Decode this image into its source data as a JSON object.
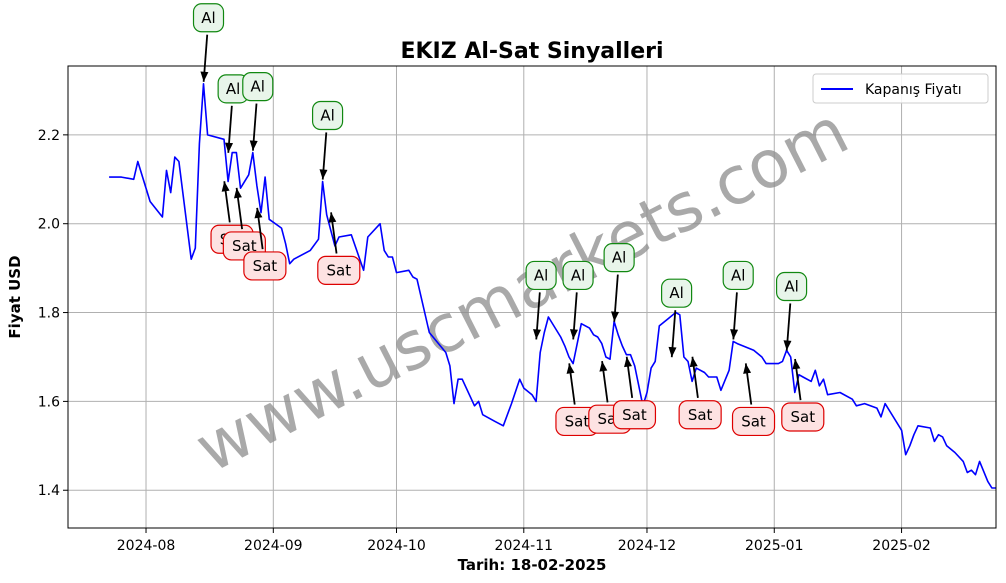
{
  "chart_data": {
    "type": "line",
    "title": "EKIZ Al-Sat Sinyalleri",
    "xlabel": "Tarih: 18-02-2025",
    "ylabel": "Fiyat USD",
    "xlim": [
      "2024-07-13",
      "2025-02-24"
    ],
    "ylim": [
      1.315,
      2.355
    ],
    "grid": true,
    "legend": "top-right",
    "watermark": "www.uscmarkets.com",
    "x_ticks": [
      "2024-08",
      "2024-09",
      "2024-10",
      "2024-11",
      "2024-12",
      "2025-01",
      "2025-02"
    ],
    "y_ticks": [
      1.4,
      1.6,
      1.8,
      2.0,
      2.2
    ],
    "series": [
      {
        "name": "Kapanış Fiyatı",
        "color": "#0000ff",
        "points": [
          [
            "2024-07-23",
            2.105
          ],
          [
            "2024-07-26",
            2.105
          ],
          [
            "2024-07-29",
            2.1
          ],
          [
            "2024-07-30",
            2.14
          ],
          [
            "2024-08-02",
            2.05
          ],
          [
            "2024-08-05",
            2.015
          ],
          [
            "2024-08-06",
            2.12
          ],
          [
            "2024-08-07",
            2.07
          ],
          [
            "2024-08-08",
            2.15
          ],
          [
            "2024-08-09",
            2.14
          ],
          [
            "2024-08-12",
            1.92
          ],
          [
            "2024-08-13",
            1.945
          ],
          [
            "2024-08-14",
            2.18
          ],
          [
            "2024-08-15",
            2.315
          ],
          [
            "2024-08-16",
            2.2
          ],
          [
            "2024-08-20",
            2.19
          ],
          [
            "2024-08-21",
            2.095
          ],
          [
            "2024-08-22",
            2.16
          ],
          [
            "2024-08-23",
            2.16
          ],
          [
            "2024-08-24",
            2.08
          ],
          [
            "2024-08-26",
            2.11
          ],
          [
            "2024-08-27",
            2.16
          ],
          [
            "2024-08-28",
            2.085
          ],
          [
            "2024-08-29",
            2.025
          ],
          [
            "2024-08-30",
            2.105
          ],
          [
            "2024-08-31",
            2.01
          ],
          [
            "2024-09-03",
            1.99
          ],
          [
            "2024-09-04",
            1.955
          ],
          [
            "2024-09-05",
            1.91
          ],
          [
            "2024-09-06",
            1.92
          ],
          [
            "2024-09-10",
            1.94
          ],
          [
            "2024-09-12",
            1.965
          ],
          [
            "2024-09-13",
            2.095
          ],
          [
            "2024-09-14",
            2.02
          ],
          [
            "2024-09-16",
            1.95
          ],
          [
            "2024-09-17",
            1.97
          ],
          [
            "2024-09-20",
            1.975
          ],
          [
            "2024-09-23",
            1.895
          ],
          [
            "2024-09-24",
            1.97
          ],
          [
            "2024-09-27",
            2.0
          ],
          [
            "2024-09-28",
            1.94
          ],
          [
            "2024-09-29",
            1.925
          ],
          [
            "2024-09-30",
            1.925
          ],
          [
            "2024-10-01",
            1.89
          ],
          [
            "2024-10-04",
            1.895
          ],
          [
            "2024-10-05",
            1.88
          ],
          [
            "2024-10-06",
            1.875
          ],
          [
            "2024-10-09",
            1.755
          ],
          [
            "2024-10-13",
            1.71
          ],
          [
            "2024-10-14",
            1.68
          ],
          [
            "2024-10-15",
            1.595
          ],
          [
            "2024-10-16",
            1.65
          ],
          [
            "2024-10-17",
            1.65
          ],
          [
            "2024-10-20",
            1.59
          ],
          [
            "2024-10-21",
            1.6
          ],
          [
            "2024-10-22",
            1.57
          ],
          [
            "2024-10-25",
            1.555
          ],
          [
            "2024-10-27",
            1.545
          ],
          [
            "2024-10-29",
            1.595
          ],
          [
            "2024-10-31",
            1.65
          ],
          [
            "2024-11-01",
            1.63
          ],
          [
            "2024-11-03",
            1.615
          ],
          [
            "2024-11-04",
            1.6
          ],
          [
            "2024-11-05",
            1.71
          ],
          [
            "2024-11-06",
            1.755
          ],
          [
            "2024-11-07",
            1.79
          ],
          [
            "2024-11-10",
            1.745
          ],
          [
            "2024-11-11",
            1.725
          ],
          [
            "2024-11-12",
            1.7
          ],
          [
            "2024-11-13",
            1.685
          ],
          [
            "2024-11-15",
            1.775
          ],
          [
            "2024-11-17",
            1.765
          ],
          [
            "2024-11-18",
            1.75
          ],
          [
            "2024-11-19",
            1.745
          ],
          [
            "2024-11-20",
            1.73
          ],
          [
            "2024-11-21",
            1.7
          ],
          [
            "2024-11-22",
            1.695
          ],
          [
            "2024-11-23",
            1.78
          ],
          [
            "2024-11-24",
            1.75
          ],
          [
            "2024-11-25",
            1.725
          ],
          [
            "2024-11-26",
            1.705
          ],
          [
            "2024-11-27",
            1.705
          ],
          [
            "2024-11-28",
            1.68
          ],
          [
            "2024-11-30",
            1.59
          ],
          [
            "2024-12-01",
            1.62
          ],
          [
            "2024-12-02",
            1.675
          ],
          [
            "2024-12-03",
            1.69
          ],
          [
            "2024-12-04",
            1.77
          ],
          [
            "2024-12-06",
            1.785
          ],
          [
            "2024-12-08",
            1.8
          ],
          [
            "2024-12-09",
            1.795
          ],
          [
            "2024-12-10",
            1.7
          ],
          [
            "2024-12-11",
            1.69
          ],
          [
            "2024-12-12",
            1.645
          ],
          [
            "2024-12-13",
            1.675
          ],
          [
            "2024-12-15",
            1.665
          ],
          [
            "2024-12-16",
            1.655
          ],
          [
            "2024-12-18",
            1.655
          ],
          [
            "2024-12-19",
            1.625
          ],
          [
            "2024-12-21",
            1.67
          ],
          [
            "2024-12-22",
            1.735
          ],
          [
            "2024-12-23",
            1.73
          ],
          [
            "2024-12-27",
            1.715
          ],
          [
            "2024-12-29",
            1.7
          ],
          [
            "2024-12-30",
            1.685
          ],
          [
            "2025-01-02",
            1.685
          ],
          [
            "2025-01-03",
            1.69
          ],
          [
            "2025-01-04",
            1.715
          ],
          [
            "2025-01-05",
            1.7
          ],
          [
            "2025-01-06",
            1.62
          ],
          [
            "2025-01-07",
            1.66
          ],
          [
            "2025-01-08",
            1.655
          ],
          [
            "2025-01-10",
            1.645
          ],
          [
            "2025-01-11",
            1.67
          ],
          [
            "2025-01-12",
            1.635
          ],
          [
            "2025-01-13",
            1.65
          ],
          [
            "2025-01-14",
            1.615
          ],
          [
            "2025-01-17",
            1.62
          ],
          [
            "2025-01-20",
            1.605
          ],
          [
            "2025-01-21",
            1.59
          ],
          [
            "2025-01-23",
            1.595
          ],
          [
            "2025-01-26",
            1.585
          ],
          [
            "2025-01-27",
            1.565
          ],
          [
            "2025-01-28",
            1.595
          ],
          [
            "2025-02-01",
            1.535
          ],
          [
            "2025-02-02",
            1.48
          ],
          [
            "2025-02-03",
            1.5
          ],
          [
            "2025-02-04",
            1.525
          ],
          [
            "2025-02-05",
            1.545
          ],
          [
            "2025-02-08",
            1.54
          ],
          [
            "2025-02-09",
            1.51
          ],
          [
            "2025-02-10",
            1.525
          ],
          [
            "2025-02-11",
            1.52
          ],
          [
            "2025-02-12",
            1.5
          ],
          [
            "2025-02-14",
            1.485
          ],
          [
            "2025-02-16",
            1.465
          ],
          [
            "2025-02-17",
            1.44
          ],
          [
            "2025-02-18",
            1.445
          ],
          [
            "2025-02-19",
            1.435
          ],
          [
            "2025-02-20",
            1.465
          ],
          [
            "2025-02-22",
            1.42
          ],
          [
            "2025-02-23",
            1.405
          ],
          [
            "2025-02-24",
            1.405
          ]
        ]
      }
    ],
    "signals": [
      {
        "type": "buy",
        "label": "Al",
        "x": "2024-08-15",
        "y": 2.315
      },
      {
        "type": "buy",
        "label": "Al",
        "x": "2024-08-21",
        "y": 2.155
      },
      {
        "type": "buy",
        "label": "Al",
        "x": "2024-08-27",
        "y": 2.16
      },
      {
        "type": "buy",
        "label": "Al",
        "x": "2024-09-13",
        "y": 2.095
      },
      {
        "type": "buy",
        "label": "Al",
        "x": "2024-11-04",
        "y": 1.735
      },
      {
        "type": "buy",
        "label": "Al",
        "x": "2024-11-13",
        "y": 1.735
      },
      {
        "type": "buy",
        "label": "Al",
        "x": "2024-11-23",
        "y": 1.775
      },
      {
        "type": "buy",
        "label": "Al",
        "x": "2024-12-07",
        "y": 1.695
      },
      {
        "type": "buy",
        "label": "Al",
        "x": "2024-12-22",
        "y": 1.735
      },
      {
        "type": "buy",
        "label": "Al",
        "x": "2025-01-04",
        "y": 1.71
      },
      {
        "type": "sell",
        "label": "Sat",
        "x": "2024-08-20",
        "y": 2.1
      },
      {
        "type": "sell",
        "label": "Sat",
        "x": "2024-08-23",
        "y": 2.085
      },
      {
        "type": "sell",
        "label": "Sat",
        "x": "2024-08-28",
        "y": 2.04
      },
      {
        "type": "sell",
        "label": "Sat",
        "x": "2024-09-15",
        "y": 2.03
      },
      {
        "type": "sell",
        "label": "Sat",
        "x": "2024-11-12",
        "y": 1.69
      },
      {
        "type": "sell",
        "label": "Sat",
        "x": "2024-11-20",
        "y": 1.695
      },
      {
        "type": "sell",
        "label": "Sat",
        "x": "2024-11-26",
        "y": 1.705
      },
      {
        "type": "sell",
        "label": "Sat",
        "x": "2024-12-12",
        "y": 1.705
      },
      {
        "type": "sell",
        "label": "Sat",
        "x": "2024-12-25",
        "y": 1.69
      },
      {
        "type": "sell",
        "label": "Sat",
        "x": "2025-01-06",
        "y": 1.7
      }
    ]
  }
}
